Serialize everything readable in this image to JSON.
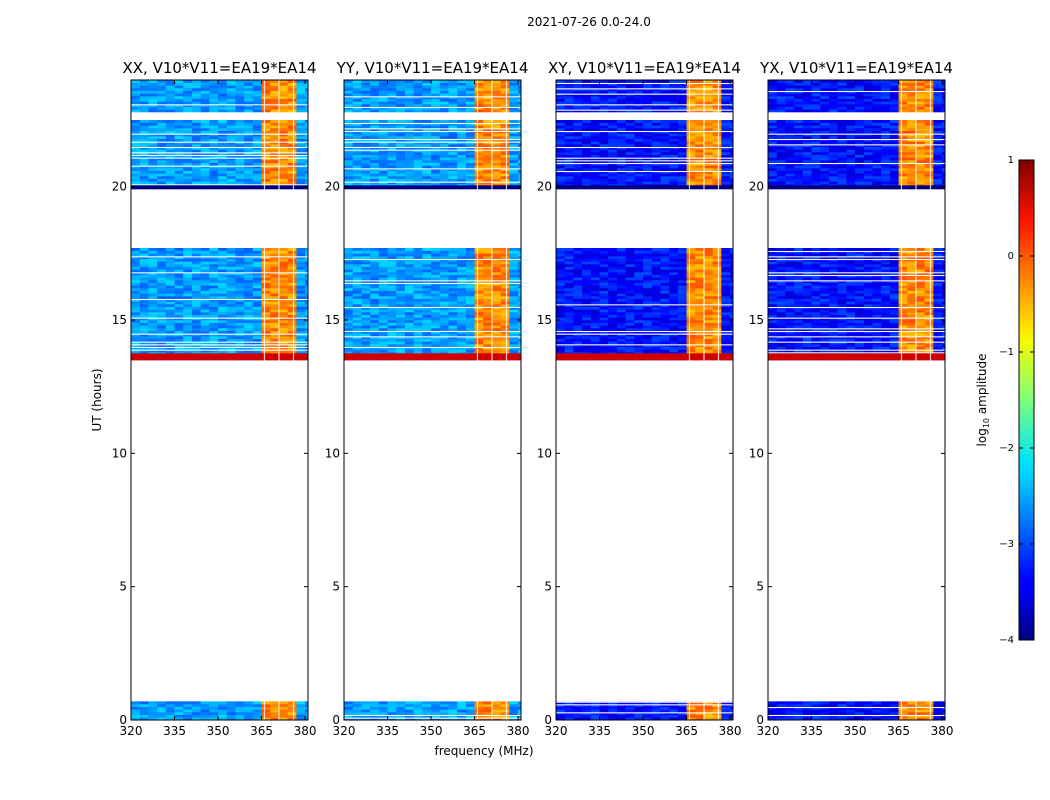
{
  "chart_data": {
    "type": "heatmap",
    "suptitle": "2021-07-26 0.0-24.0",
    "xlabel": "frequency (MHz)",
    "ylabel": "UT (hours)",
    "colorbar_label": "log10 amplitude",
    "colormap": "jet",
    "clim": [
      -4,
      1
    ],
    "colorbar_ticks": [
      "1",
      "0",
      "−1",
      "−2",
      "−3",
      "−4"
    ],
    "xlim": [
      320,
      381
    ],
    "ylim": [
      0,
      24
    ],
    "xticks": [
      "320",
      "335",
      "350",
      "365",
      "380"
    ],
    "yticks": [
      "0",
      "5",
      "10",
      "15",
      "20"
    ],
    "panels": [
      {
        "title": "XX, V10*V11=EA19*EA14",
        "pol": "XX"
      },
      {
        "title": "YY, V10*V11=EA19*EA14",
        "pol": "YY"
      },
      {
        "title": "XY, V10*V11=EA19*EA14",
        "pol": "XY"
      },
      {
        "title": "YX, V10*V11=EA19*EA14",
        "pol": "YX"
      }
    ],
    "data_time_ranges_hours": [
      [
        0.0,
        0.7
      ],
      [
        13.5,
        17.7
      ],
      [
        20.0,
        22.5
      ],
      [
        22.8,
        24.0
      ]
    ],
    "bright_band_mhz": [
      363,
      377
    ],
    "bright_band_log_amplitude": -0.3,
    "background_log_amplitude": {
      "XX": -2.6,
      "YY": -2.6,
      "XY": -3.3,
      "YX": -3.3
    }
  }
}
